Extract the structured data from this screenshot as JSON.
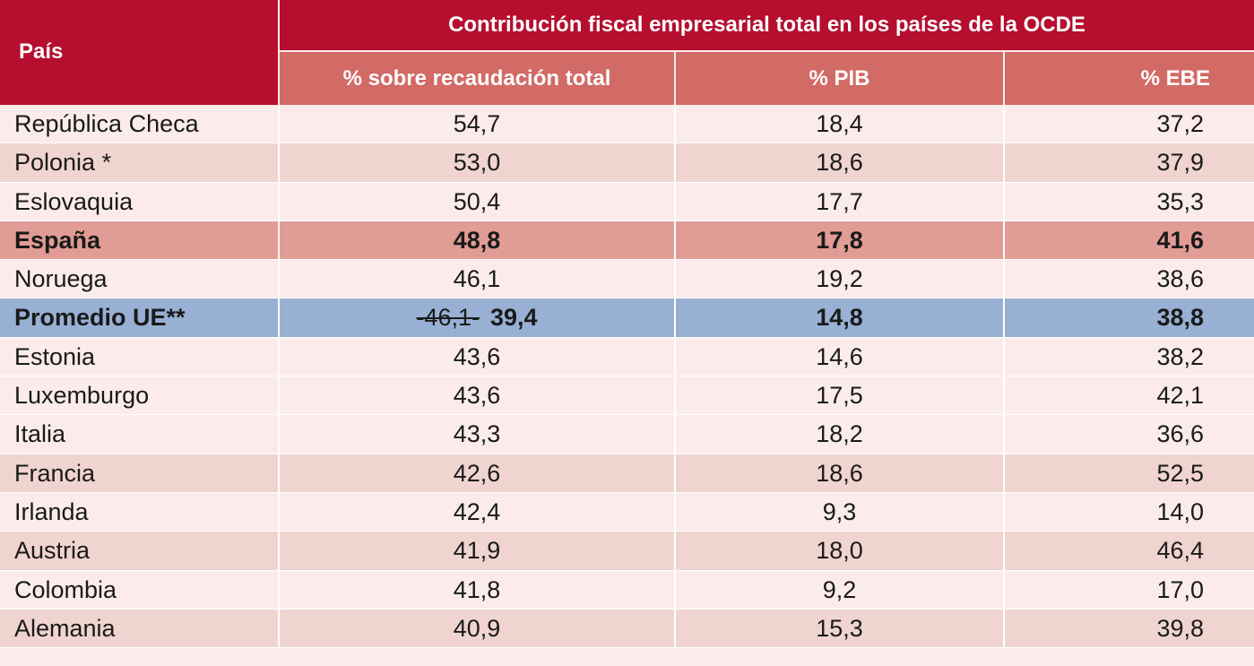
{
  "header": {
    "pais": "País",
    "main_title": "Contribución fiscal empresarial total en los países de la OCDE",
    "col1": "% sobre recaudación total",
    "col2": "% PIB",
    "col3": "% EBE"
  },
  "rows": [
    {
      "pais": "República Checa",
      "v1": "54,7",
      "v2": "18,4",
      "v3": "37,2",
      "style": "light"
    },
    {
      "pais": "Polonia *",
      "v1": "53,0",
      "v2": "18,6",
      "v3": "37,9",
      "style": "dark"
    },
    {
      "pais": "Eslovaquia",
      "v1": "50,4",
      "v2": "17,7",
      "v3": "35,3",
      "style": "light"
    },
    {
      "pais": "España",
      "v1": "48,8",
      "v2": "17,8",
      "v3": "41,6",
      "style": "hl"
    },
    {
      "pais": "Noruega",
      "v1": "46,1",
      "v2": "19,2",
      "v3": "38,6",
      "style": "light"
    },
    {
      "pais": "Promedio UE**",
      "v1_struck": "-46,1-",
      "v1": "39,4",
      "v2": "14,8",
      "v3": "38,8",
      "style": "avg"
    },
    {
      "pais": "Estonia",
      "v1": "43,6",
      "v2": "14,6",
      "v3": "38,2",
      "style": "light"
    },
    {
      "pais": "Luxemburgo",
      "v1": "43,6",
      "v2": "17,5",
      "v3": "42,1",
      "style": "light"
    },
    {
      "pais": "Italia",
      "v1": "43,3",
      "v2": "18,2",
      "v3": "36,6",
      "style": "light"
    },
    {
      "pais": "Francia",
      "v1": "42,6",
      "v2": "18,6",
      "v3": "52,5",
      "style": "dark"
    },
    {
      "pais": "Irlanda",
      "v1": "42,4",
      "v2": "9,3",
      "v3": "14,0",
      "style": "light"
    },
    {
      "pais": "Austria",
      "v1": "41,9",
      "v2": "18,0",
      "v3": "46,4",
      "style": "dark"
    },
    {
      "pais": "Colombia",
      "v1": "41,8",
      "v2": "9,2",
      "v3": "17,0",
      "style": "light"
    },
    {
      "pais": "Alemania",
      "v1": "40,9",
      "v2": "15,3",
      "v3": "39,8",
      "style": "dark"
    }
  ]
}
